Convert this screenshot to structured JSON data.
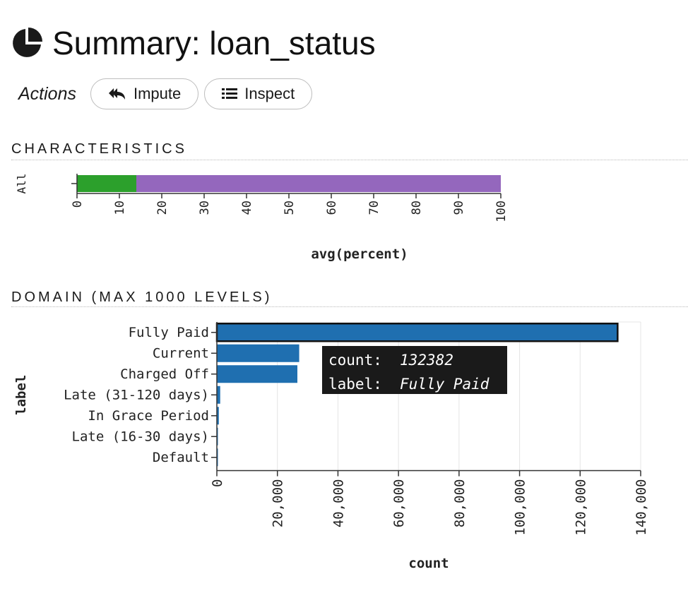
{
  "header": {
    "title": "Summary: loan_status",
    "icon": "pie-chart-icon"
  },
  "actions": {
    "label": "Actions",
    "buttons": [
      {
        "label": "Impute",
        "icon": "reply-arrow-icon"
      },
      {
        "label": "Inspect",
        "icon": "list-icon"
      }
    ]
  },
  "characteristics": {
    "title": "CHARACTERISTICS"
  },
  "domain": {
    "title": "DOMAIN (MAX 1000 LEVELS)"
  },
  "tooltip": {
    "count_key": "count:",
    "count_value": "132382",
    "label_key": "label:",
    "label_value": "Fully Paid"
  },
  "chart_data": [
    {
      "type": "bar",
      "orientation": "horizontal-stacked",
      "categories": [
        "All"
      ],
      "series": [
        {
          "color": "#2ca02c",
          "values": [
            14
          ]
        },
        {
          "color": "#9467bd",
          "values": [
            86
          ]
        }
      ],
      "xlabel": "avg(percent)",
      "ylabel": "",
      "xlim": [
        0,
        100
      ],
      "xticks": [
        "0",
        "10",
        "20",
        "30",
        "40",
        "50",
        "60",
        "70",
        "80",
        "90",
        "100"
      ],
      "grid": false
    },
    {
      "type": "bar",
      "orientation": "horizontal",
      "categories": [
        "Fully Paid",
        "Current",
        "Charged Off",
        "Late (31-120 days)",
        "In Grace Period",
        "Late (16-30 days)",
        "Default"
      ],
      "values": [
        132382,
        27200,
        26600,
        1100,
        650,
        250,
        100
      ],
      "color": "#1f6fb0",
      "highlight_index": 0,
      "xlabel": "count",
      "ylabel": "label",
      "xlim": [
        0,
        140000
      ],
      "xticks": [
        "0",
        "20,000",
        "40,000",
        "60,000",
        "80,000",
        "100,000",
        "120,000",
        "140,000"
      ],
      "grid": true
    }
  ]
}
